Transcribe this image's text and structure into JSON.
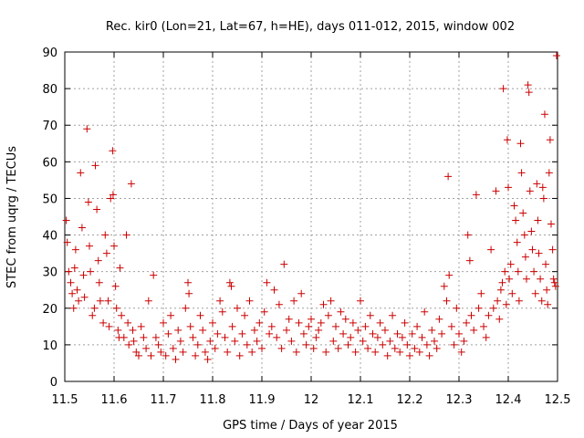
{
  "chart_data": {
    "type": "scatter",
    "title": "Rec. kir0 (Lon=21, Lat=67, h=HE), days 011-012, 2015, window 002",
    "xlabel": "GPS time / Days of year 2015",
    "ylabel": "STEC from uqrg / TECUs",
    "xlim": [
      11.5,
      12.5
    ],
    "ylim": [
      0,
      90
    ],
    "xticks": [
      11.5,
      11.6,
      11.7,
      11.8,
      11.9,
      12.0,
      12.1,
      12.2,
      12.3,
      12.4,
      12.5
    ],
    "xtick_labels": [
      "11.5",
      "11.6",
      "11.7",
      "11.8",
      "11.9",
      "12",
      "12.1",
      "12.2",
      "12.3",
      "12.4",
      "12.5"
    ],
    "yticks": [
      0,
      10,
      20,
      30,
      40,
      50,
      60,
      70,
      80,
      90
    ],
    "ytick_labels": [
      "0",
      "10",
      "20",
      "30",
      "40",
      "50",
      "60",
      "70",
      "80",
      "90"
    ],
    "grid": true,
    "marker": "plus",
    "color": "#cc0000",
    "points": [
      [
        11.503,
        44
      ],
      [
        11.505,
        38
      ],
      [
        11.508,
        30
      ],
      [
        11.512,
        27
      ],
      [
        11.515,
        24
      ],
      [
        11.518,
        20
      ],
      [
        11.52,
        31
      ],
      [
        11.522,
        36
      ],
      [
        11.525,
        25
      ],
      [
        11.528,
        22
      ],
      [
        11.532,
        57
      ],
      [
        11.535,
        42
      ],
      [
        11.538,
        29
      ],
      [
        11.54,
        23
      ],
      [
        11.545,
        69
      ],
      [
        11.548,
        49
      ],
      [
        11.55,
        37
      ],
      [
        11.552,
        30
      ],
      [
        11.556,
        18
      ],
      [
        11.56,
        20
      ],
      [
        11.562,
        59
      ],
      [
        11.565,
        47
      ],
      [
        11.568,
        33
      ],
      [
        11.57,
        27
      ],
      [
        11.572,
        22
      ],
      [
        11.578,
        16
      ],
      [
        11.582,
        40
      ],
      [
        11.585,
        35
      ],
      [
        11.588,
        22
      ],
      [
        11.59,
        15
      ],
      [
        11.593,
        50
      ],
      [
        11.597,
        63
      ],
      [
        11.598,
        51
      ],
      [
        11.6,
        37
      ],
      [
        11.603,
        26
      ],
      [
        11.605,
        20
      ],
      [
        11.608,
        14
      ],
      [
        11.61,
        12
      ],
      [
        11.612,
        31
      ],
      [
        11.615,
        18
      ],
      [
        11.62,
        12
      ],
      [
        11.625,
        40
      ],
      [
        11.628,
        16
      ],
      [
        11.63,
        10
      ],
      [
        11.635,
        54
      ],
      [
        11.638,
        14
      ],
      [
        11.64,
        11
      ],
      [
        11.645,
        8
      ],
      [
        11.65,
        7
      ],
      [
        11.655,
        15
      ],
      [
        11.66,
        12
      ],
      [
        11.665,
        9
      ],
      [
        11.67,
        22
      ],
      [
        11.675,
        7
      ],
      [
        11.68,
        29
      ],
      [
        11.685,
        12
      ],
      [
        11.69,
        10
      ],
      [
        11.695,
        8
      ],
      [
        11.7,
        16
      ],
      [
        11.705,
        7
      ],
      [
        11.71,
        13
      ],
      [
        11.715,
        18
      ],
      [
        11.72,
        9
      ],
      [
        11.725,
        6
      ],
      [
        11.73,
        14
      ],
      [
        11.735,
        11
      ],
      [
        11.74,
        8
      ],
      [
        11.745,
        20
      ],
      [
        11.75,
        27
      ],
      [
        11.752,
        24
      ],
      [
        11.755,
        15
      ],
      [
        11.76,
        12
      ],
      [
        11.765,
        7
      ],
      [
        11.77,
        10
      ],
      [
        11.775,
        18
      ],
      [
        11.78,
        14
      ],
      [
        11.785,
        8
      ],
      [
        11.79,
        6
      ],
      [
        11.795,
        11
      ],
      [
        11.8,
        16
      ],
      [
        11.805,
        9
      ],
      [
        11.81,
        13
      ],
      [
        11.815,
        22
      ],
      [
        11.82,
        19
      ],
      [
        11.825,
        12
      ],
      [
        11.83,
        8
      ],
      [
        11.835,
        27
      ],
      [
        11.838,
        26
      ],
      [
        11.84,
        15
      ],
      [
        11.845,
        11
      ],
      [
        11.85,
        20
      ],
      [
        11.855,
        7
      ],
      [
        11.86,
        13
      ],
      [
        11.865,
        18
      ],
      [
        11.87,
        10
      ],
      [
        11.875,
        22
      ],
      [
        11.88,
        8
      ],
      [
        11.885,
        14
      ],
      [
        11.89,
        11
      ],
      [
        11.895,
        16
      ],
      [
        11.9,
        9
      ],
      [
        11.905,
        19
      ],
      [
        11.91,
        27
      ],
      [
        11.915,
        13
      ],
      [
        11.92,
        15
      ],
      [
        11.925,
        25
      ],
      [
        11.93,
        12
      ],
      [
        11.935,
        21
      ],
      [
        11.94,
        9
      ],
      [
        11.945,
        32
      ],
      [
        11.95,
        14
      ],
      [
        11.955,
        17
      ],
      [
        11.96,
        11
      ],
      [
        11.965,
        22
      ],
      [
        11.97,
        8
      ],
      [
        11.975,
        16
      ],
      [
        11.98,
        24
      ],
      [
        11.985,
        13
      ],
      [
        11.99,
        10
      ],
      [
        11.995,
        15
      ],
      [
        12.0,
        17
      ],
      [
        12.005,
        9
      ],
      [
        12.01,
        12
      ],
      [
        12.015,
        14
      ],
      [
        12.02,
        16
      ],
      [
        12.025,
        21
      ],
      [
        12.03,
        8
      ],
      [
        12.035,
        18
      ],
      [
        12.04,
        22
      ],
      [
        12.045,
        11
      ],
      [
        12.05,
        15
      ],
      [
        12.055,
        9
      ],
      [
        12.06,
        19
      ],
      [
        12.065,
        13
      ],
      [
        12.07,
        17
      ],
      [
        12.075,
        10
      ],
      [
        12.08,
        12
      ],
      [
        12.085,
        16
      ],
      [
        12.09,
        8
      ],
      [
        12.095,
        14
      ],
      [
        12.1,
        22
      ],
      [
        12.105,
        11
      ],
      [
        12.11,
        15
      ],
      [
        12.115,
        9
      ],
      [
        12.12,
        18
      ],
      [
        12.125,
        13
      ],
      [
        12.13,
        8
      ],
      [
        12.135,
        12
      ],
      [
        12.14,
        16
      ],
      [
        12.145,
        10
      ],
      [
        12.15,
        14
      ],
      [
        12.155,
        7
      ],
      [
        12.16,
        11
      ],
      [
        12.165,
        18
      ],
      [
        12.17,
        9
      ],
      [
        12.175,
        13
      ],
      [
        12.18,
        8
      ],
      [
        12.185,
        12
      ],
      [
        12.19,
        16
      ],
      [
        12.195,
        10
      ],
      [
        12.2,
        7
      ],
      [
        12.205,
        13
      ],
      [
        12.21,
        9
      ],
      [
        12.215,
        15
      ],
      [
        12.22,
        8
      ],
      [
        12.225,
        12
      ],
      [
        12.23,
        19
      ],
      [
        12.235,
        10
      ],
      [
        12.24,
        7
      ],
      [
        12.245,
        14
      ],
      [
        12.25,
        11
      ],
      [
        12.255,
        9
      ],
      [
        12.26,
        17
      ],
      [
        12.265,
        13
      ],
      [
        12.27,
        26
      ],
      [
        12.275,
        22
      ],
      [
        12.278,
        56
      ],
      [
        12.28,
        29
      ],
      [
        12.285,
        15
      ],
      [
        12.29,
        10
      ],
      [
        12.295,
        20
      ],
      [
        12.3,
        13
      ],
      [
        12.305,
        8
      ],
      [
        12.31,
        11
      ],
      [
        12.315,
        16
      ],
      [
        12.318,
        40
      ],
      [
        12.322,
        33
      ],
      [
        12.325,
        18
      ],
      [
        12.33,
        14
      ],
      [
        12.335,
        51
      ],
      [
        12.34,
        20
      ],
      [
        12.345,
        24
      ],
      [
        12.35,
        15
      ],
      [
        12.355,
        12
      ],
      [
        12.36,
        18
      ],
      [
        12.365,
        36
      ],
      [
        12.37,
        20
      ],
      [
        12.375,
        52
      ],
      [
        12.378,
        22
      ],
      [
        12.382,
        17
      ],
      [
        12.385,
        25
      ],
      [
        12.388,
        27
      ],
      [
        12.39,
        80
      ],
      [
        12.393,
        30
      ],
      [
        12.396,
        21
      ],
      [
        12.398,
        66
      ],
      [
        12.4,
        53
      ],
      [
        12.402,
        28
      ],
      [
        12.405,
        32
      ],
      [
        12.408,
        24
      ],
      [
        12.412,
        48
      ],
      [
        12.415,
        44
      ],
      [
        12.418,
        38
      ],
      [
        12.42,
        30
      ],
      [
        12.422,
        22
      ],
      [
        12.425,
        65
      ],
      [
        12.427,
        57
      ],
      [
        12.43,
        46
      ],
      [
        12.433,
        40
      ],
      [
        12.435,
        34
      ],
      [
        12.437,
        28
      ],
      [
        12.44,
        81
      ],
      [
        12.442,
        79
      ],
      [
        12.444,
        52
      ],
      [
        12.447,
        41
      ],
      [
        12.449,
        36
      ],
      [
        12.452,
        30
      ],
      [
        12.455,
        24
      ],
      [
        12.458,
        54
      ],
      [
        12.46,
        44
      ],
      [
        12.462,
        35
      ],
      [
        12.465,
        28
      ],
      [
        12.468,
        22
      ],
      [
        12.47,
        53
      ],
      [
        12.472,
        50
      ],
      [
        12.474,
        73
      ],
      [
        12.476,
        32
      ],
      [
        12.478,
        25
      ],
      [
        12.48,
        21
      ],
      [
        12.483,
        57
      ],
      [
        12.485,
        66
      ],
      [
        12.487,
        43
      ],
      [
        12.49,
        36
      ],
      [
        12.492,
        28
      ],
      [
        12.494,
        27
      ],
      [
        12.496,
        26
      ],
      [
        12.498,
        89
      ]
    ]
  }
}
